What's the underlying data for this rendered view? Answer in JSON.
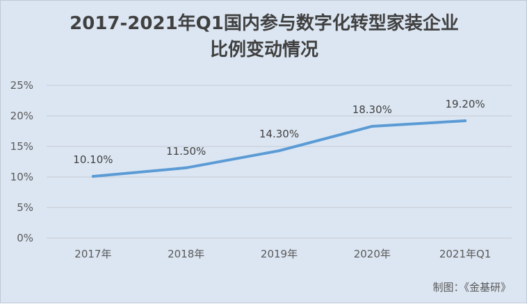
{
  "chart_data": {
    "type": "line",
    "title_line1": "2017-2021年Q1国内参与数字化转型家装企业",
    "title_line2": "比例变动情况",
    "categories": [
      "2017年",
      "2018年",
      "2019年",
      "2020年",
      "2021年Q1"
    ],
    "series": [
      {
        "values": [
          10.1,
          11.5,
          14.3,
          18.3,
          19.2
        ],
        "color": "#5b9bd5"
      }
    ],
    "data_labels": [
      "10.10%",
      "11.50%",
      "14.30%",
      "18.30%",
      "19.20%"
    ],
    "y_ticks": [
      "0%",
      "5%",
      "10%",
      "15%",
      "20%",
      "25%"
    ],
    "ylim": [
      0,
      25
    ],
    "grid": true,
    "legend": "none"
  },
  "credit": "制图：《金基研》"
}
